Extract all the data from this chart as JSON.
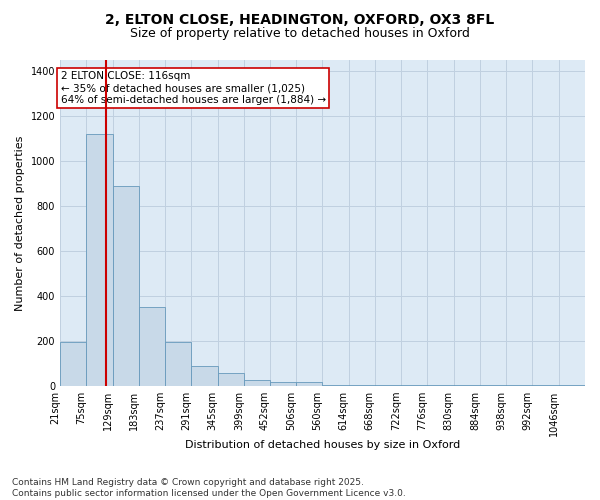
{
  "title_line1": "2, ELTON CLOSE, HEADINGTON, OXFORD, OX3 8FL",
  "title_line2": "Size of property relative to detached houses in Oxford",
  "xlabel": "Distribution of detached houses by size in Oxford",
  "ylabel": "Number of detached properties",
  "bar_edges": [
    21,
    75,
    129,
    183,
    237,
    291,
    345,
    399,
    452,
    506,
    560,
    614,
    668,
    722,
    776,
    830,
    884,
    938,
    992,
    1046,
    1100
  ],
  "bar_heights": [
    195,
    1120,
    890,
    350,
    195,
    90,
    55,
    25,
    15,
    15,
    5,
    2,
    2,
    2,
    2,
    2,
    2,
    2,
    1,
    1
  ],
  "bar_color": "#c8d9e8",
  "bar_edgecolor": "#6699bb",
  "vline_x": 116,
  "vline_color": "#cc0000",
  "annotation_text": "2 ELTON CLOSE: 116sqm\n← 35% of detached houses are smaller (1,025)\n64% of semi-detached houses are larger (1,884) →",
  "annotation_box_color": "#cc0000",
  "ylim": [
    0,
    1450
  ],
  "yticks": [
    0,
    200,
    400,
    600,
    800,
    1000,
    1200,
    1400
  ],
  "grid_color": "#c0d0e0",
  "bg_color": "#ddeaf5",
  "footnote": "Contains HM Land Registry data © Crown copyright and database right 2025.\nContains public sector information licensed under the Open Government Licence v3.0.",
  "title_fontsize": 10,
  "subtitle_fontsize": 9,
  "axis_label_fontsize": 8,
  "tick_fontsize": 7,
  "annotation_fontsize": 7.5,
  "footnote_fontsize": 6.5
}
